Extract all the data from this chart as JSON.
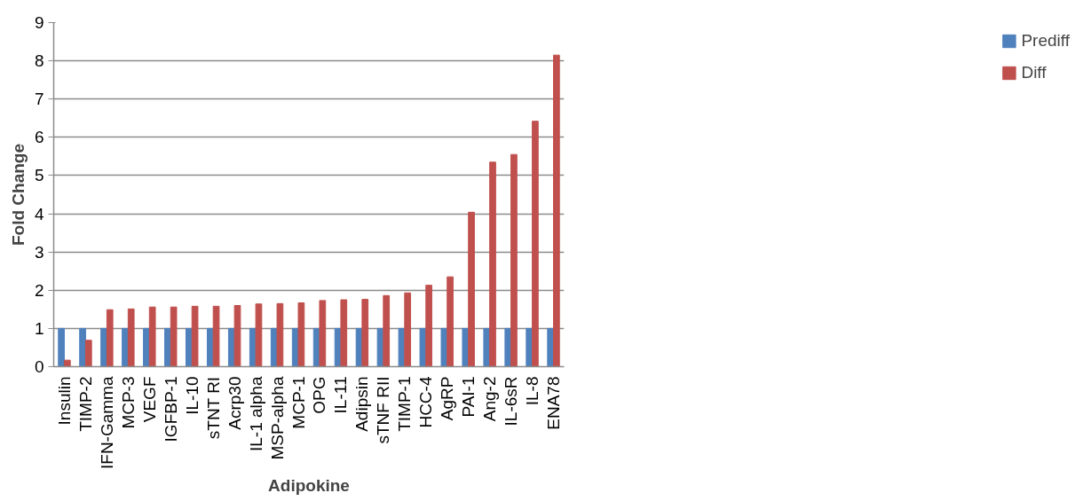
{
  "chart_data": {
    "type": "bar",
    "xlabel": "Adipokine",
    "ylabel": "Fold Change",
    "categories": [
      "Insulin",
      "TIMP-2",
      "IFN-Gamma",
      "MCP-3",
      "VEGF",
      "IGFBP-1",
      "IL-10",
      "sTNT RI",
      "Acrp30",
      "IL-1 alpha",
      "MSP-alpha",
      "MCP-1",
      "OPG",
      "IL-11",
      "Adipsin",
      "sTNF RII",
      "TIMP-1",
      "HCC-4",
      "AgRP",
      "PAI-1",
      "Ang-2",
      "IL-6sR",
      "IL-8",
      "ENA78"
    ],
    "series": [
      {
        "name": "Prediff",
        "color": "#4f81bd",
        "values": [
          1,
          1,
          1,
          1,
          1,
          1,
          1,
          1,
          1,
          1,
          1,
          1,
          1,
          1,
          1,
          1,
          1,
          1,
          1,
          1,
          1,
          1,
          1,
          1
        ]
      },
      {
        "name": "Diff",
        "color": "#c0504d",
        "values": [
          0.17,
          0.69,
          1.49,
          1.51,
          1.56,
          1.56,
          1.58,
          1.58,
          1.6,
          1.64,
          1.65,
          1.67,
          1.73,
          1.75,
          1.76,
          1.86,
          1.93,
          2.13,
          2.35,
          4.04,
          5.35,
          5.55,
          6.42,
          8.15
        ]
      }
    ],
    "ylim": [
      0,
      9
    ],
    "yticks": [
      0,
      1,
      2,
      3,
      4,
      5,
      6,
      7,
      8,
      9
    ],
    "grid": "y",
    "legend": "right"
  }
}
